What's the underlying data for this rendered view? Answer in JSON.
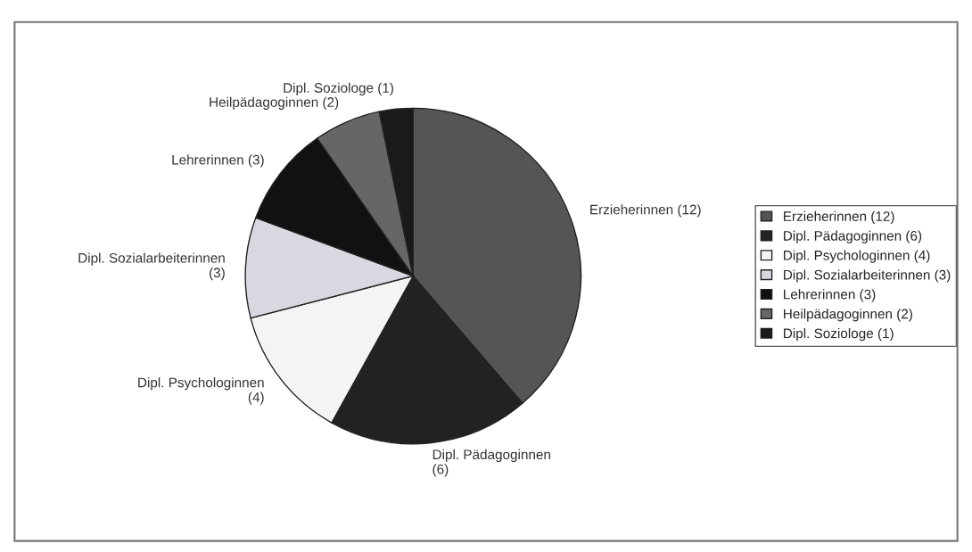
{
  "chart_data": {
    "type": "pie",
    "categories": [
      "Erzieherinnen (12)",
      "Dipl. Pädagoginnen (6)",
      "Dipl. Psychologinnen (4)",
      "Dipl. Sozialarbeiterinnen (3)",
      "Lehrerinnen (3)",
      "Heilpädagoginnen (2)",
      "Dipl. Soziologe (1)"
    ],
    "values": [
      12,
      6,
      4,
      3,
      3,
      2,
      1
    ],
    "colors": [
      "#555555",
      "#222222",
      "#f4f4f4",
      "#d8d8e0",
      "#111111",
      "#666666",
      "#1a1a1a"
    ],
    "legend": "right"
  }
}
